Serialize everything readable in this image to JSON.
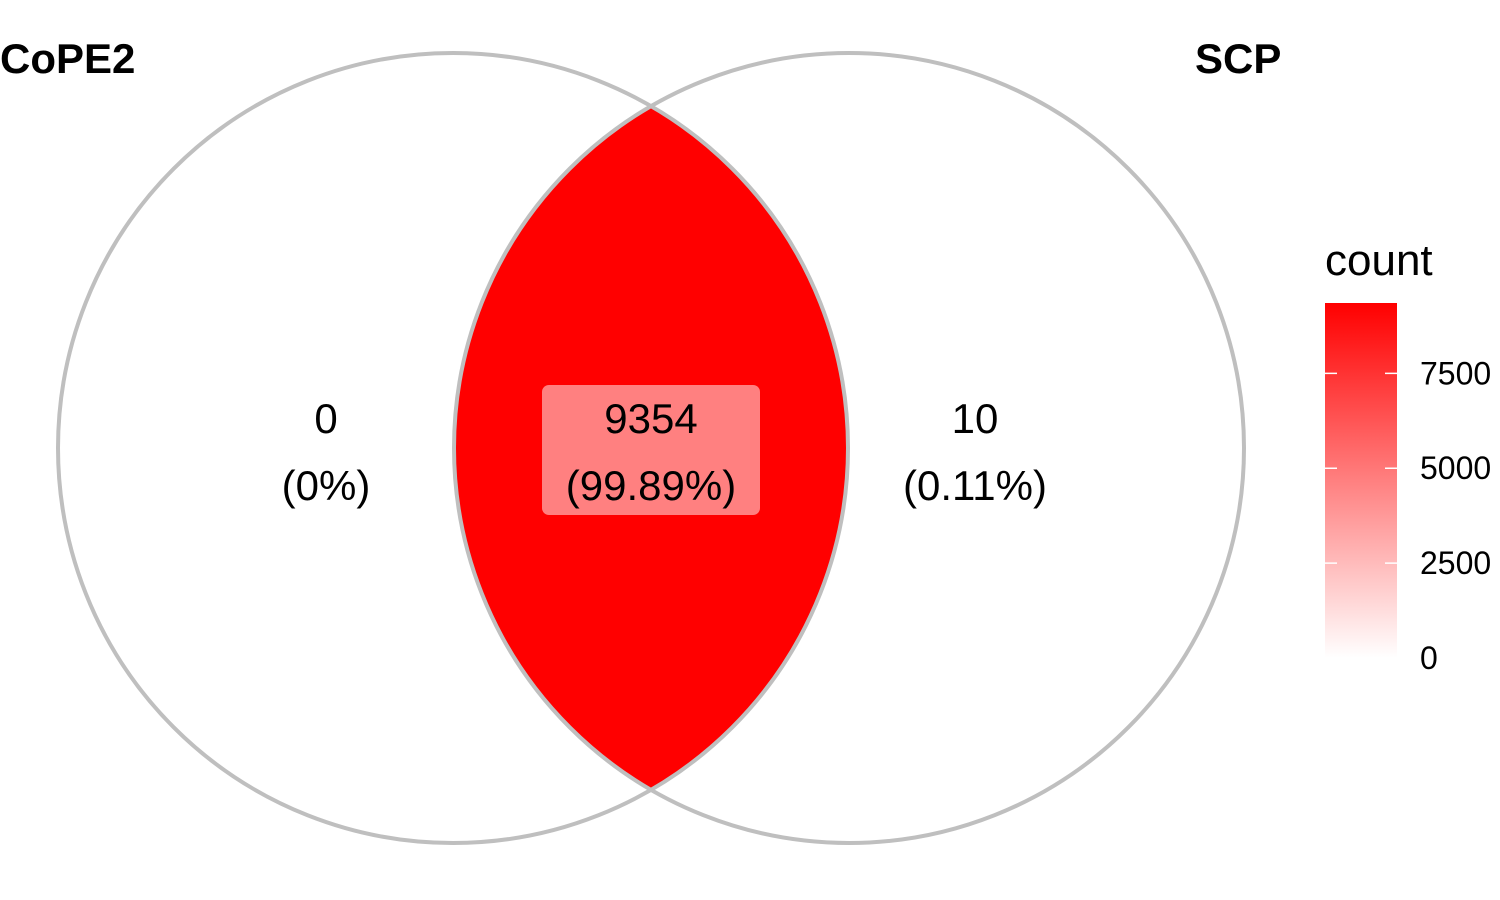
{
  "colors": {
    "outline": "#bfbfbf",
    "high": "#ff0000",
    "low": "#ffffff",
    "label_box": "#ff8080"
  },
  "sets": [
    {
      "name": "CoPE2"
    },
    {
      "name": "SCP"
    }
  ],
  "regions": [
    {
      "id": "cope2-only",
      "count": "0",
      "percent": "(0%)",
      "value": 0
    },
    {
      "id": "intersection",
      "count": "9354",
      "percent": "(99.89%)",
      "value": 9354
    },
    {
      "id": "scp-only",
      "count": "10",
      "percent": "(0.11%)",
      "value": 10
    }
  ],
  "legend": {
    "title": "count",
    "min": 0,
    "max": 9354,
    "ticks": [
      {
        "value": 7500,
        "label": "7500"
      },
      {
        "value": 5000,
        "label": "5000"
      },
      {
        "value": 2500,
        "label": "2500"
      },
      {
        "value": 0,
        "label": "0"
      }
    ]
  }
}
